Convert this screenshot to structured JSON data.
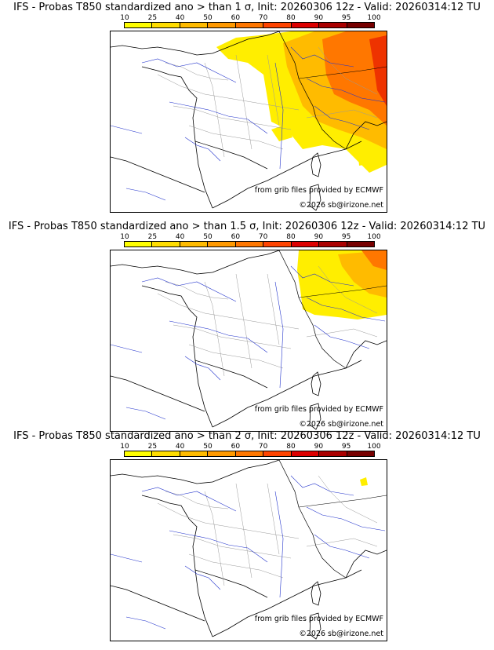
{
  "panels": [
    {
      "title": "IFS - Probas T850  standardized ano > than 1 σ, Init: 20260306 12z - Valid: 20260314:12 TU",
      "source_note": "from grib files provided by ECMWF",
      "copyright": "©2026 sb@irizone.net",
      "coverage_level": "wide"
    },
    {
      "title": "IFS - Probas T850  standardized ano > than 1.5 σ, Init: 20260306 12z - Valid: 20260314:12 TU",
      "source_note": "from grib files provided by ECMWF",
      "copyright": "©2026 sb@irizone.net",
      "coverage_level": "medium"
    },
    {
      "title": "IFS - Probas T850  standardized ano > than 2 σ, Init: 20260306 12z - Valid: 20260314:12 TU",
      "source_note": "from grib files provided by ECMWF",
      "copyright": "©2026 sb@irizone.net",
      "coverage_level": "minimal"
    }
  ],
  "color_scale": {
    "labels": [
      "10",
      "25",
      "40",
      "50",
      "60",
      "70",
      "80",
      "90",
      "95",
      "100"
    ],
    "colors": [
      "#ffff00",
      "#ffdd00",
      "#ffbb00",
      "#ff9900",
      "#ff7700",
      "#ff4400",
      "#dd0000",
      "#aa0000",
      "#770000"
    ]
  },
  "map_colors": {
    "coast": "#000000",
    "rivers": "#2233cc",
    "borders": "#999999",
    "prob_low": "#ffee00",
    "prob_mid": "#ffbb00",
    "prob_high": "#ff7700",
    "prob_very_high": "#ee3300"
  }
}
